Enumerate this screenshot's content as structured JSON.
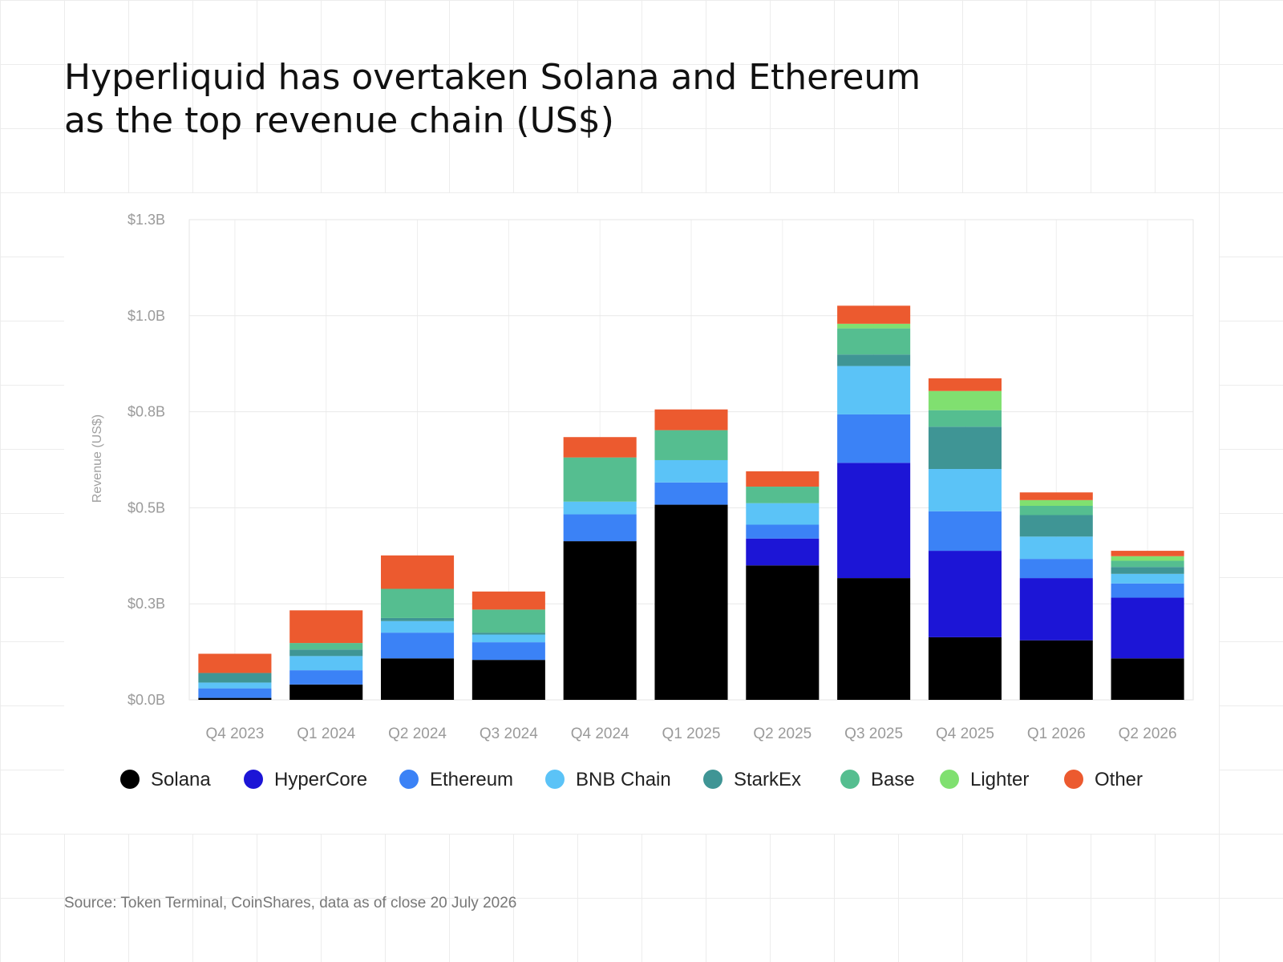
{
  "title_lines": [
    "Hyperliquid has overtaken Solana and Ethereum",
    "as the top revenue chain (US$)"
  ],
  "source": "Source: Token Terminal, CoinShares, data as of close 20 July 2026",
  "chart_data": {
    "type": "bar",
    "stacked": true,
    "title": "Hyperliquid has overtaken Solana and Ethereum as the top revenue chain (US$)",
    "xlabel": "",
    "ylabel": "Revenue (US$)",
    "ylim": [
      0,
      1.25
    ],
    "unit": "billion US$",
    "yticks": [
      0,
      0.25,
      0.5,
      0.75,
      1.0,
      1.25
    ],
    "ytick_labels": [
      "$0.0B",
      "$0.3B",
      "$0.5B",
      "$0.8B",
      "$1.0B",
      "$1.3B"
    ],
    "grid": true,
    "legend_position": "bottom",
    "categories": [
      "Q4 2023",
      "Q1 2024",
      "Q2 2024",
      "Q3 2024",
      "Q4 2024",
      "Q1 2025",
      "Q2 2025",
      "Q3 2025",
      "Q4 2025",
      "Q1 2026",
      "Q2 2026"
    ],
    "series": [
      {
        "name": "Solana",
        "color": "#000000",
        "values": [
          0.005,
          0.04,
          0.108,
          0.104,
          0.413,
          0.508,
          0.35,
          0.317,
          0.163,
          0.155,
          0.108
        ]
      },
      {
        "name": "HyperCore",
        "color": "#1c15d6",
        "values": [
          0,
          0,
          0,
          0,
          0,
          0,
          0.07,
          0.3,
          0.225,
          0.162,
          0.158
        ]
      },
      {
        "name": "Ethereum",
        "color": "#3b82f6",
        "values": [
          0.025,
          0.037,
          0.067,
          0.046,
          0.07,
          0.058,
          0.036,
          0.126,
          0.103,
          0.05,
          0.037
        ]
      },
      {
        "name": "BNB Chain",
        "color": "#5bc3f7",
        "values": [
          0.015,
          0.037,
          0.03,
          0.02,
          0.033,
          0.058,
          0.056,
          0.126,
          0.11,
          0.058,
          0.025
        ]
      },
      {
        "name": "StarkEx",
        "color": "#3f9595",
        "values": [
          0.025,
          0.017,
          0.008,
          0.005,
          0,
          0,
          0,
          0.03,
          0.11,
          0.056,
          0.018
        ]
      },
      {
        "name": "Base",
        "color": "#55be90",
        "values": [
          0,
          0.017,
          0.076,
          0.06,
          0.115,
          0.078,
          0.043,
          0.068,
          0.043,
          0.024,
          0.016
        ]
      },
      {
        "name": "Lighter",
        "color": "#80e070",
        "values": [
          0,
          0,
          0,
          0,
          0,
          0,
          0,
          0.012,
          0.05,
          0.015,
          0.012
        ]
      },
      {
        "name": "Other",
        "color": "#ec5a2f",
        "values": [
          0.05,
          0.085,
          0.087,
          0.047,
          0.053,
          0.054,
          0.04,
          0.047,
          0.033,
          0.02,
          0.014
        ]
      }
    ]
  }
}
